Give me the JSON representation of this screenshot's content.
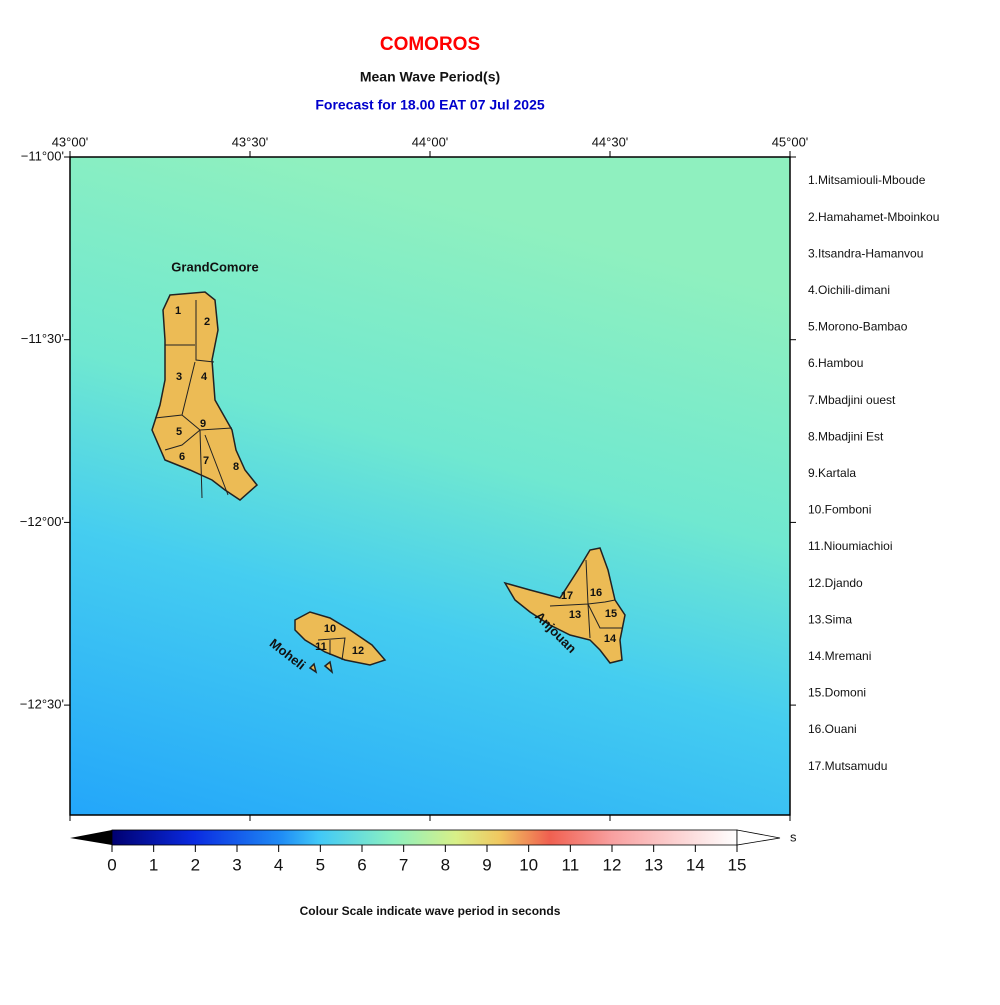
{
  "header": {
    "title": "COMOROS",
    "subtitle": "Mean Wave Period(s)",
    "forecast": "Forecast for  18.00 EAT 07 Jul 2025"
  },
  "map": {
    "lon_labels": [
      "43°00'",
      "43°30'",
      "44°00'",
      "44°30'",
      "45°00'"
    ],
    "lat_labels": [
      "−11°00'",
      "−11°30'",
      "−12°00'",
      "−12°30'"
    ],
    "islands": [
      "GrandComore",
      "Moheli",
      "Anjouan"
    ],
    "regions": [
      "1",
      "2",
      "3",
      "4",
      "5",
      "6",
      "7",
      "8",
      "9",
      "10",
      "11",
      "12",
      "13",
      "14",
      "15",
      "16",
      "17"
    ]
  },
  "legend": [
    "1.Mitsamiouli-Mboude",
    "2.Hamahamet-Mboinkou",
    "3.Itsandra-Hamanvou",
    "4.Oichili-dimani",
    "5.Morono-Bambao",
    "6.Hambou",
    "7.Mbadjini ouest",
    "8.Mbadjini Est",
    "9.Kartala",
    "10.Fomboni",
    "11.Nioumiachioi",
    "12.Djando",
    "13.Sima",
    "14.Mremani",
    "15.Domoni",
    "16.Ouani",
    "17.Mutsamudu"
  ],
  "colorbar": {
    "ticks": [
      0,
      1,
      2,
      3,
      4,
      5,
      6,
      7,
      8,
      9,
      10,
      11,
      12,
      13,
      14,
      15
    ],
    "unit": "s",
    "caption": "Colour Scale indicate wave period in seconds"
  }
}
